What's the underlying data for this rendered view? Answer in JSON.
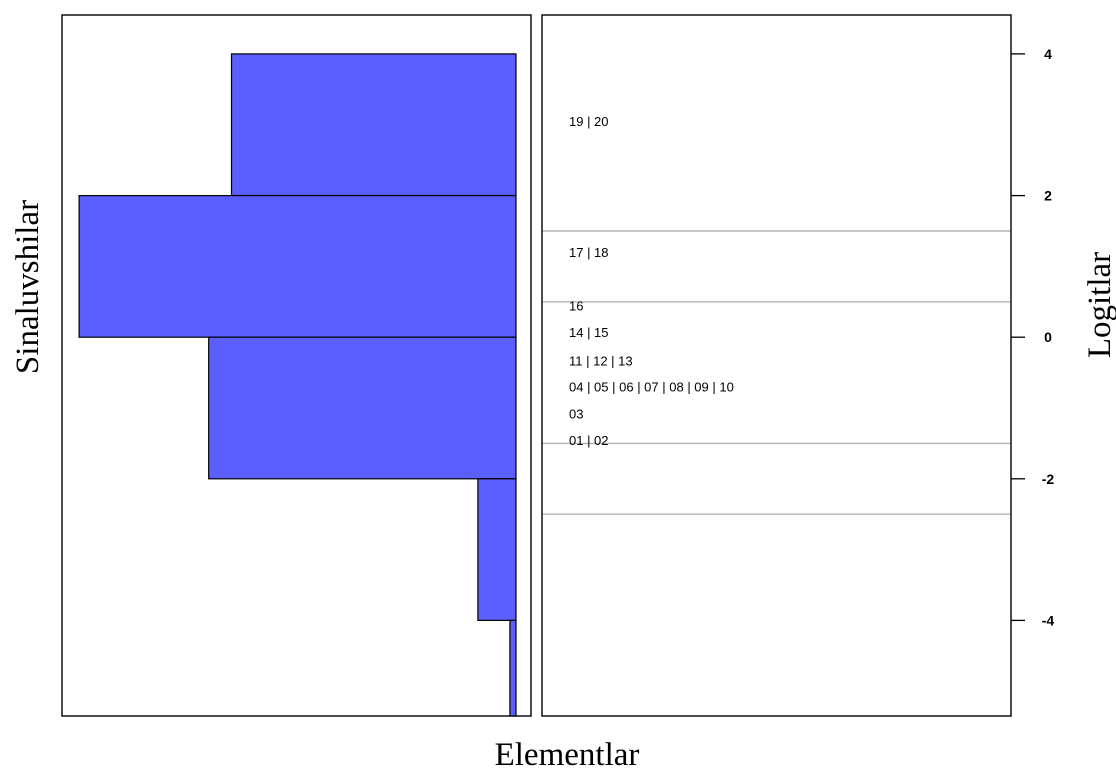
{
  "chart_data": {
    "type": "wright-map",
    "title": "",
    "xlabel": "Elementlar",
    "ylabel_left": "Sinaluvshilar",
    "ylabel_right": "Logitlar",
    "ylim": [
      -5.35,
      4.55
    ],
    "yticks": [
      4,
      2,
      0,
      -2,
      -4
    ],
    "yticklabels": [
      "4",
      "2",
      "0",
      "-2",
      "-4"
    ],
    "colors": {
      "bar_fill": "#5b5ffe",
      "bar_stroke": "#000000",
      "threshold_line": "#b4b4b4"
    },
    "person_histogram": {
      "orientation": "horizontal",
      "bins": [
        {
          "from": 2,
          "to": 4,
          "count": 0.56
        },
        {
          "from": 0,
          "to": 2,
          "count": 0.86
        },
        {
          "from": -2,
          "to": 0,
          "count": 0.605
        },
        {
          "from": -4,
          "to": -2,
          "count": 0.075
        },
        {
          "from": -5.35,
          "to": -4,
          "count": 0.012
        }
      ]
    },
    "item_labels": [
      {
        "text": "19 | 20",
        "logit": 3.05
      },
      {
        "text": "17 | 18",
        "logit": 1.2
      },
      {
        "text": "16",
        "logit": 0.45
      },
      {
        "text": "14 | 15",
        "logit": 0.07
      },
      {
        "text": "11 | 12 | 13",
        "logit": -0.33
      },
      {
        "text": "04 | 05 | 06 | 07 | 08 | 09 | 10",
        "logit": -0.7
      },
      {
        "text": "03",
        "logit": -1.08
      },
      {
        "text": "01 | 02",
        "logit": -1.45
      }
    ],
    "threshold_lines": [
      1.5,
      0.5,
      -1.5,
      -2.5
    ]
  }
}
